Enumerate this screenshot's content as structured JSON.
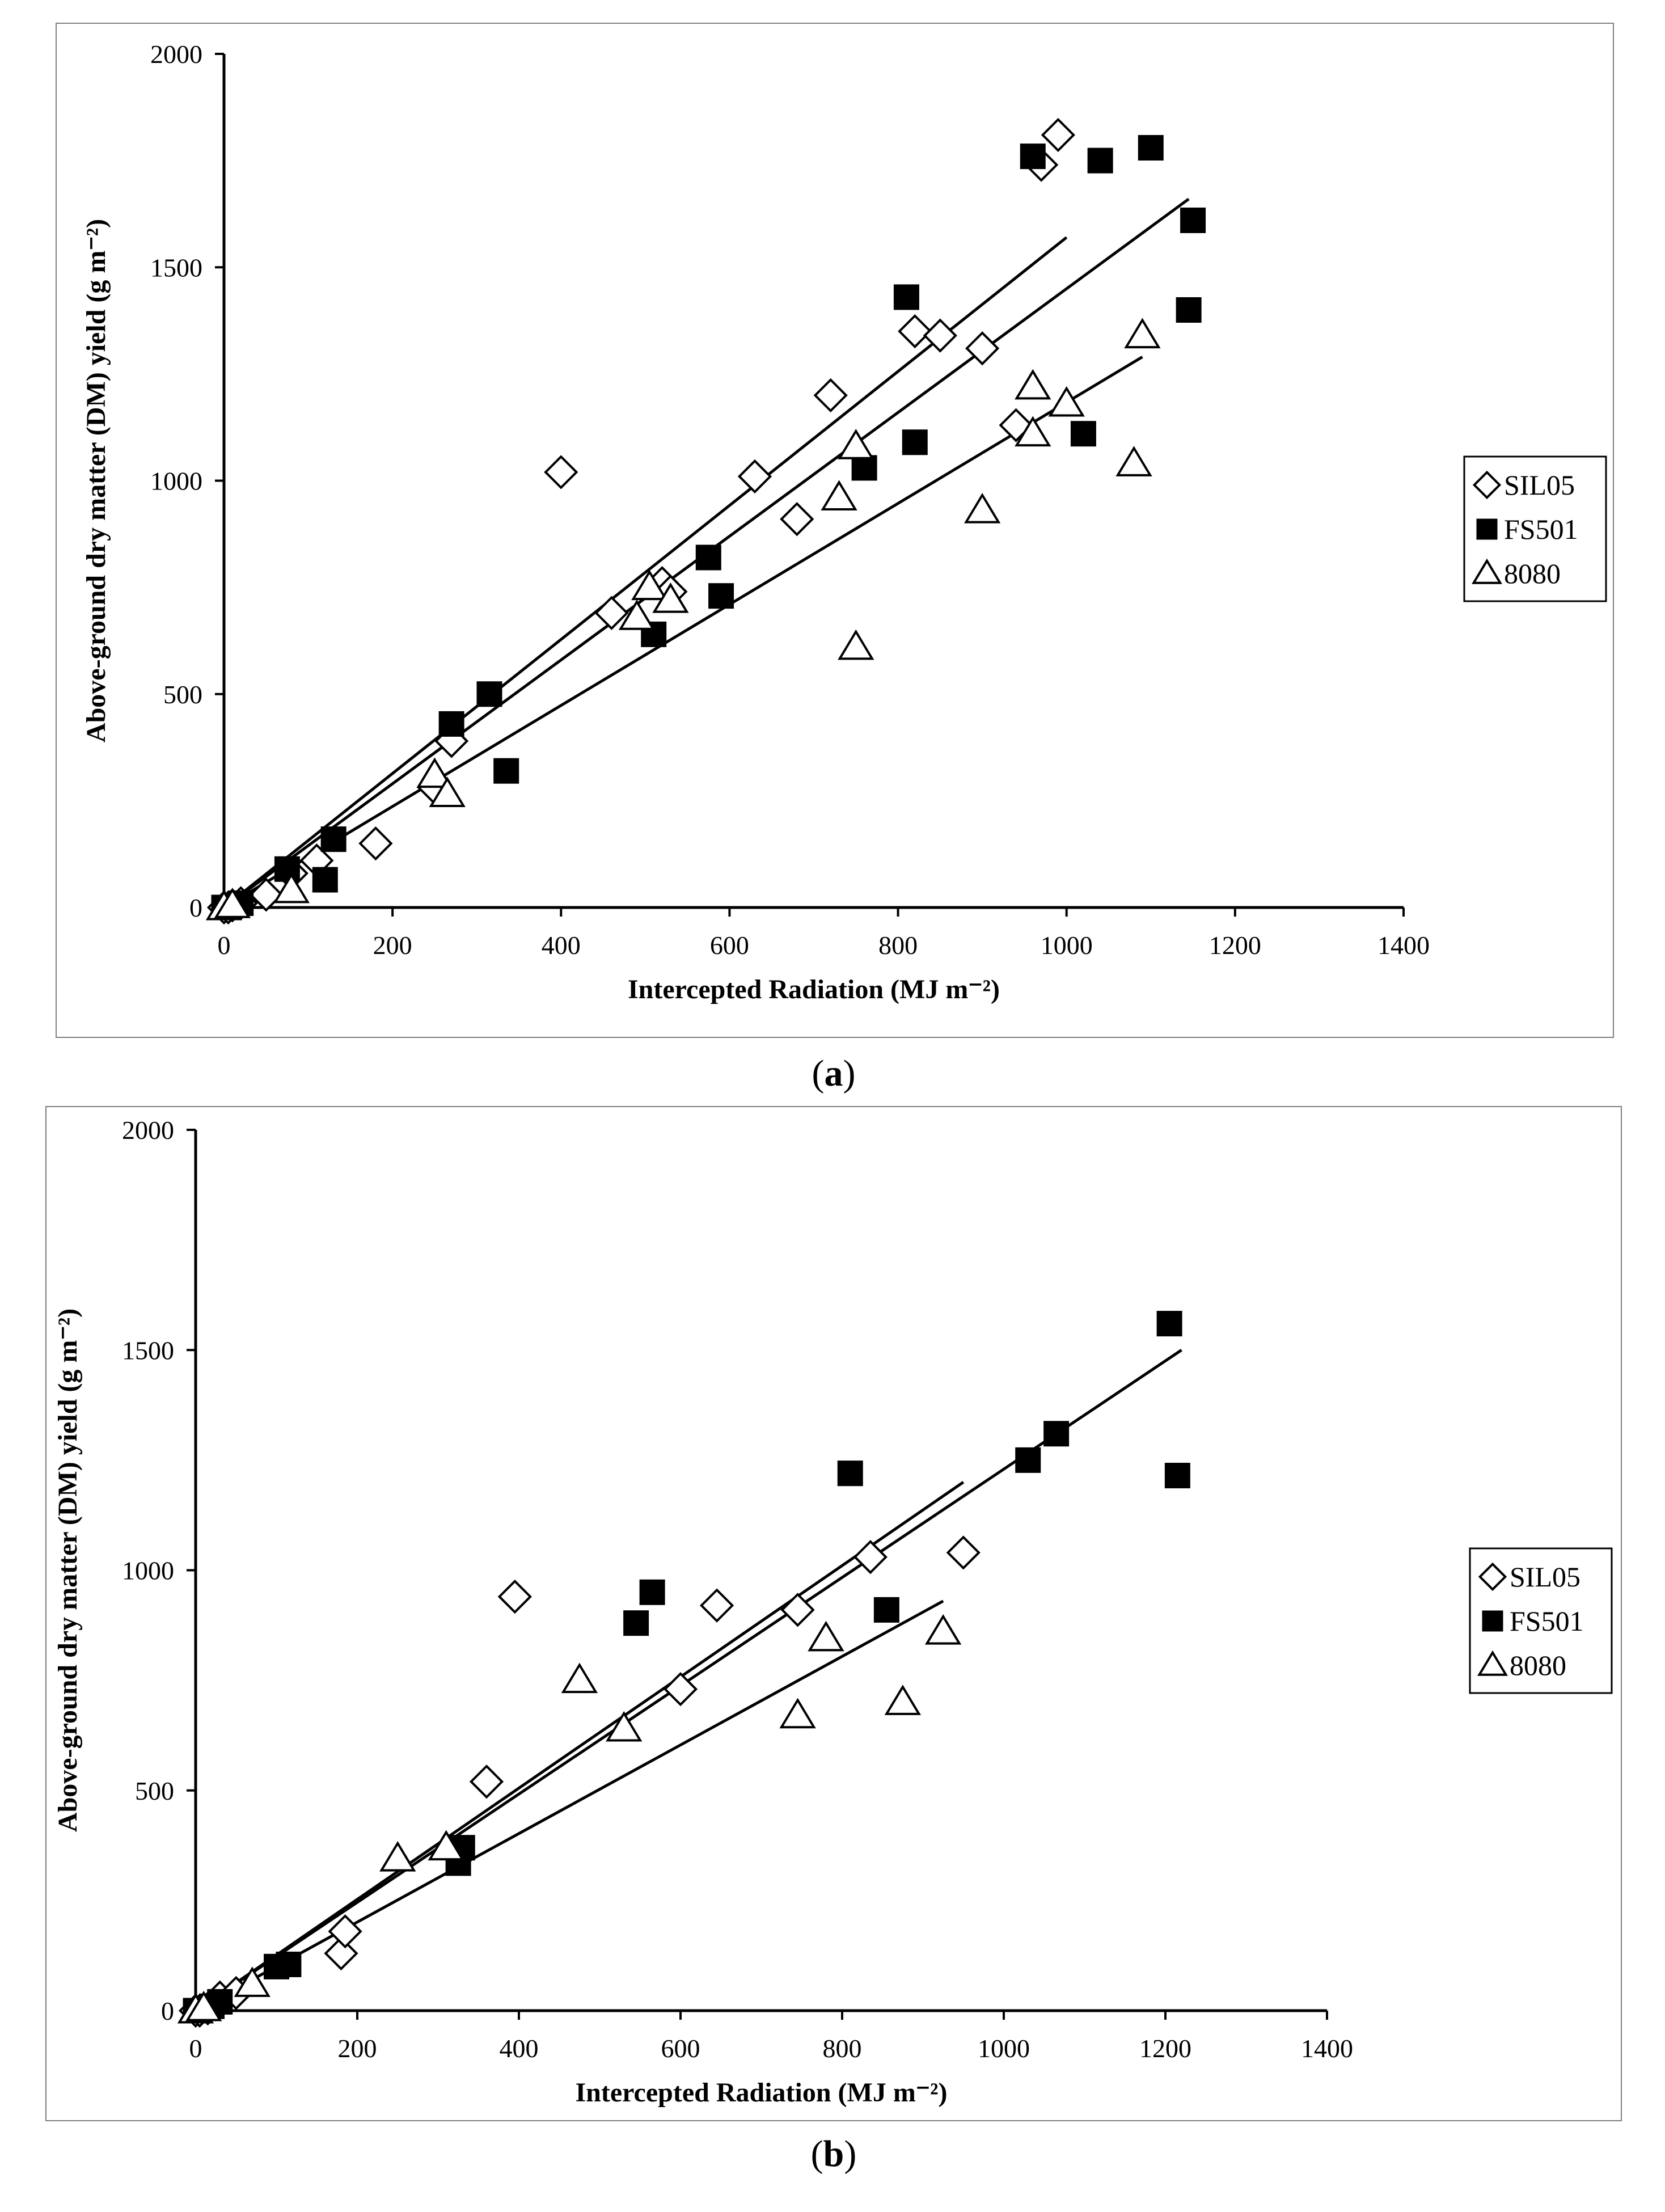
{
  "captions": [
    "a",
    "b"
  ],
  "chart_data": [
    {
      "type": "scatter",
      "panel": "a",
      "title": "",
      "xlabel": "Intercepted Radiation (MJ m⁻²)",
      "ylabel": "Above-ground dry matter (DM) yield (g m⁻²)",
      "xlim": [
        0,
        1400
      ],
      "ylim": [
        0,
        2000
      ],
      "xticks": [
        0,
        200,
        400,
        600,
        800,
        1000,
        1200,
        1400
      ],
      "yticks": [
        0,
        500,
        1000,
        1500,
        2000
      ],
      "legend_position": "right",
      "series": [
        {
          "name": "SIL05",
          "marker": "diamond-open",
          "points": [
            [
              0,
              0
            ],
            [
              5,
              0
            ],
            [
              10,
              5
            ],
            [
              20,
              10
            ],
            [
              50,
              30
            ],
            [
              80,
              80
            ],
            [
              110,
              110
            ],
            [
              180,
              150
            ],
            [
              250,
              280
            ],
            [
              270,
              390
            ],
            [
              400,
              1020
            ],
            [
              460,
              690
            ],
            [
              520,
              760
            ],
            [
              530,
              740
            ],
            [
              630,
              1010
            ],
            [
              680,
              910
            ],
            [
              720,
              1200
            ],
            [
              820,
              1350
            ],
            [
              850,
              1340
            ],
            [
              900,
              1310
            ],
            [
              940,
              1130
            ],
            [
              970,
              1740
            ],
            [
              990,
              1810
            ]
          ],
          "fit": [
            [
              0,
              0
            ],
            [
              1000,
              1570
            ]
          ]
        },
        {
          "name": "FS501",
          "marker": "square-filled",
          "points": [
            [
              0,
              0
            ],
            [
              5,
              0
            ],
            [
              20,
              10
            ],
            [
              75,
              90
            ],
            [
              120,
              65
            ],
            [
              130,
              160
            ],
            [
              270,
              430
            ],
            [
              315,
              500
            ],
            [
              335,
              320
            ],
            [
              510,
              640
            ],
            [
              575,
              820
            ],
            [
              590,
              730
            ],
            [
              760,
              1030
            ],
            [
              810,
              1430
            ],
            [
              820,
              1090
            ],
            [
              960,
              1760
            ],
            [
              1040,
              1750
            ],
            [
              1100,
              1780
            ],
            [
              1020,
              1110
            ],
            [
              1145,
              1400
            ],
            [
              1150,
              1610
            ]
          ],
          "fit": [
            [
              0,
              0
            ],
            [
              1145,
              1660
            ]
          ]
        },
        {
          "name": "8080",
          "marker": "triangle-open",
          "points": [
            [
              0,
              0
            ],
            [
              10,
              5
            ],
            [
              80,
              40
            ],
            [
              250,
              310
            ],
            [
              265,
              265
            ],
            [
              490,
              680
            ],
            [
              505,
              750
            ],
            [
              530,
              720
            ],
            [
              730,
              960
            ],
            [
              750,
              1080
            ],
            [
              750,
              610
            ],
            [
              900,
              930
            ],
            [
              960,
              1220
            ],
            [
              960,
              1110
            ],
            [
              1000,
              1180
            ],
            [
              1080,
              1040
            ],
            [
              1090,
              1340
            ]
          ],
          "fit": [
            [
              0,
              0
            ],
            [
              1090,
              1290
            ]
          ]
        }
      ]
    },
    {
      "type": "scatter",
      "panel": "b",
      "title": "",
      "xlabel": "Intercepted Radiation (MJ m⁻²)",
      "ylabel": "Above-ground dry matter (DM) yield (g m⁻²)",
      "xlim": [
        0,
        1400
      ],
      "ylim": [
        0,
        2000
      ],
      "xticks": [
        0,
        200,
        400,
        600,
        800,
        1000,
        1200,
        1400
      ],
      "yticks": [
        0,
        500,
        1000,
        1500,
        2000
      ],
      "legend_position": "right",
      "series": [
        {
          "name": "SIL05",
          "marker": "diamond-open",
          "points": [
            [
              0,
              0
            ],
            [
              5,
              0
            ],
            [
              15,
              5
            ],
            [
              30,
              30
            ],
            [
              50,
              40
            ],
            [
              180,
              130
            ],
            [
              185,
              180
            ],
            [
              360,
              520
            ],
            [
              395,
              940
            ],
            [
              600,
              730
            ],
            [
              645,
              920
            ],
            [
              745,
              910
            ],
            [
              835,
              1030
            ],
            [
              950,
              1040
            ]
          ],
          "fit": [
            [
              0,
              0
            ],
            [
              950,
              1200
            ]
          ]
        },
        {
          "name": "FS501",
          "marker": "square-filled",
          "points": [
            [
              0,
              0
            ],
            [
              5,
              0
            ],
            [
              20,
              10
            ],
            [
              30,
              20
            ],
            [
              100,
              100
            ],
            [
              115,
              105
            ],
            [
              325,
              335
            ],
            [
              330,
              370
            ],
            [
              545,
              880
            ],
            [
              565,
              950
            ],
            [
              810,
              1220
            ],
            [
              855,
              910
            ],
            [
              1030,
              1250
            ],
            [
              1065,
              1310
            ],
            [
              1205,
              1560
            ],
            [
              1215,
              1215
            ]
          ],
          "fit": [
            [
              0,
              0
            ],
            [
              1220,
              1500
            ]
          ]
        },
        {
          "name": "8080",
          "marker": "triangle-open",
          "points": [
            [
              0,
              0
            ],
            [
              10,
              5
            ],
            [
              70,
              60
            ],
            [
              250,
              345
            ],
            [
              310,
              370
            ],
            [
              475,
              750
            ],
            [
              530,
              640
            ],
            [
              745,
              670
            ],
            [
              780,
              845
            ],
            [
              875,
              700
            ],
            [
              925,
              860
            ]
          ],
          "fit": [
            [
              0,
              0
            ],
            [
              925,
              930
            ]
          ]
        }
      ]
    }
  ]
}
